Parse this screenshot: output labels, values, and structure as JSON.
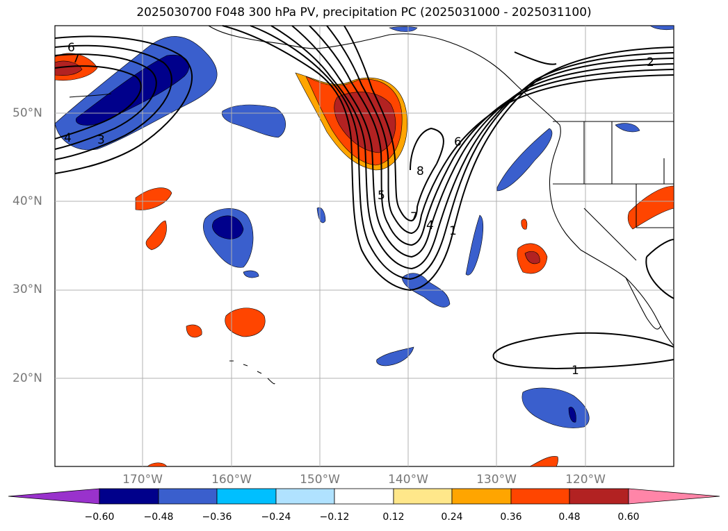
{
  "title": "2025030700 F048 300 hPa PV, precipitation PC (2025031000 - 2025031100)",
  "lat_labels": [
    "50°N",
    "40°N",
    "30°N",
    "20°N"
  ],
  "lon_labels": [
    "170°W",
    "160°W",
    "150°W",
    "140°W",
    "130°W",
    "120°W"
  ],
  "colorbar": {
    "ticks": [
      "−0.60",
      "−0.48",
      "−0.36",
      "−0.24",
      "−0.12",
      "0.12",
      "0.24",
      "0.36",
      "0.48",
      "0.60"
    ],
    "colors": [
      "#9932cc",
      "#00008b",
      "#3a5fcd",
      "#00bfff",
      "#b0e2ff",
      "#ffffff",
      "#ffe78a",
      "#ffa500",
      "#ff4500",
      "#b22222",
      "#ff85a8"
    ]
  },
  "contour_labels": [
    "6",
    "7",
    "4",
    "3",
    "5",
    "8",
    "7",
    "4",
    "1",
    "6",
    "2",
    "1"
  ],
  "colors": {
    "negative_strong": "#00008b",
    "negative": "#3a5fcd",
    "positive": "#ff4500",
    "positive_strong": "#b22222",
    "grid": "#b0b0b0"
  }
}
